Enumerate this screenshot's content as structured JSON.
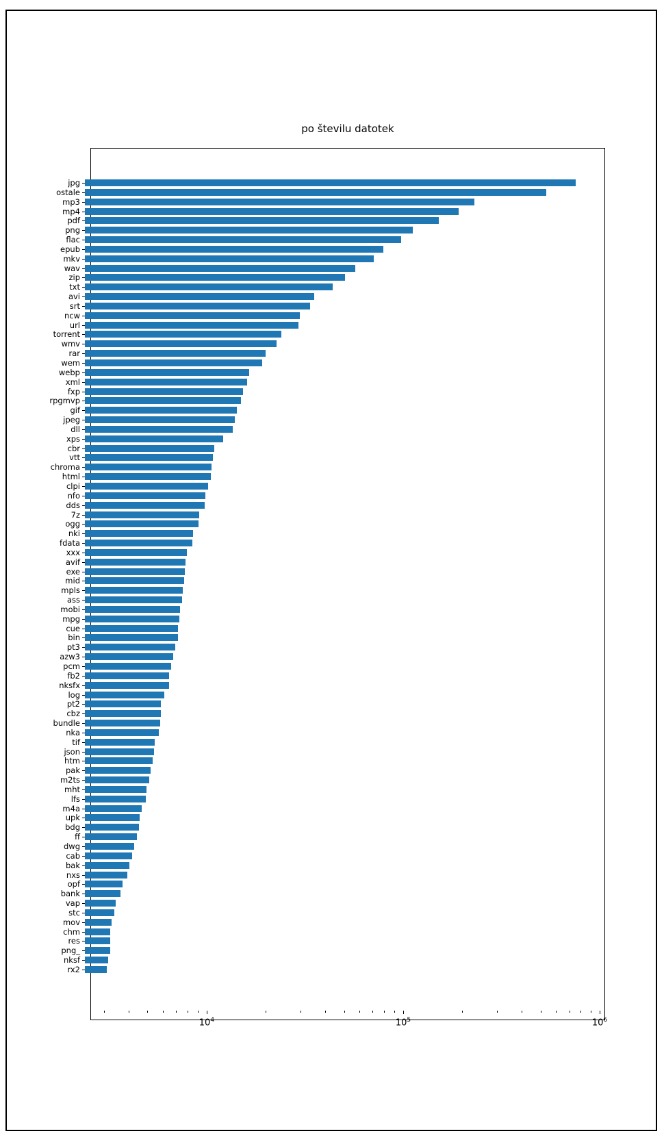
{
  "figure": {
    "background": "#ffffff",
    "frame_color": "#000000"
  },
  "chart_data": {
    "type": "bar",
    "orientation": "horizontal",
    "title": "po številu datotek",
    "xlabel": "",
    "ylabel": "",
    "xscale": "log",
    "xlim": [
      2400,
      1000000
    ],
    "grid": false,
    "legend": false,
    "bar_color": "#1f77b4",
    "major_ticks": [
      {
        "value": 10000,
        "base": "10",
        "sup": "4"
      },
      {
        "value": 100000,
        "base": "10",
        "sup": "5"
      },
      {
        "value": 1000000,
        "base": "10",
        "sup": "6"
      }
    ],
    "categories": [
      "jpg",
      "ostale",
      "mp3",
      "mp4",
      "pdf",
      "png",
      "flac",
      "epub",
      "mkv",
      "wav",
      "zip",
      "txt",
      "avi",
      "srt",
      "ncw",
      "url",
      "torrent",
      "wmv",
      "rar",
      "wem",
      "webp",
      "xml",
      "fxp",
      "rpgmvp",
      "gif",
      "jpeg",
      "dll",
      "xps",
      "cbr",
      "vtt",
      "chroma",
      "html",
      "clpi",
      "nfo",
      "dds",
      "7z",
      "ogg",
      "nki",
      "fdata",
      "xxx",
      "avif",
      "exe",
      "mid",
      "mpls",
      "ass",
      "mobi",
      "mpg",
      "cue",
      "bin",
      "pt3",
      "azw3",
      "pcm",
      "fb2",
      "nksfx",
      "log",
      "pt2",
      "cbz",
      "bundle",
      "nka",
      "tif",
      "json",
      "htm",
      "pak",
      "m2ts",
      "mht",
      "lfs",
      "m4a",
      "upk",
      "bdg",
      "ff",
      "dwg",
      "cab",
      "bak",
      "nxs",
      "opf",
      "bank",
      "vap",
      "stc",
      "mov",
      "chm",
      "res",
      "png_",
      "nksf",
      "rx2"
    ],
    "values": [
      755000,
      535000,
      230000,
      191000,
      152000,
      112000,
      98000,
      79000,
      71000,
      57000,
      50500,
      43800,
      35200,
      33600,
      29800,
      29300,
      24000,
      22700,
      19900,
      19200,
      16400,
      16100,
      15300,
      15000,
      14200,
      13900,
      13600,
      12100,
      10900,
      10750,
      10580,
      10500,
      10160,
      9840,
      9760,
      9150,
      9080,
      8550,
      8450,
      7900,
      7800,
      7750,
      7700,
      7560,
      7520,
      7320,
      7270,
      7140,
      7130,
      6910,
      6750,
      6590,
      6460,
      6430,
      6080,
      5870,
      5840,
      5780,
      5710,
      5430,
      5390,
      5330,
      5190,
      5090,
      4930,
      4890,
      4660,
      4550,
      4540,
      4430,
      4280,
      4160,
      4030,
      3940,
      3730,
      3630,
      3450,
      3400,
      3280,
      3240,
      3230,
      3225,
      3140,
      3110
    ]
  }
}
